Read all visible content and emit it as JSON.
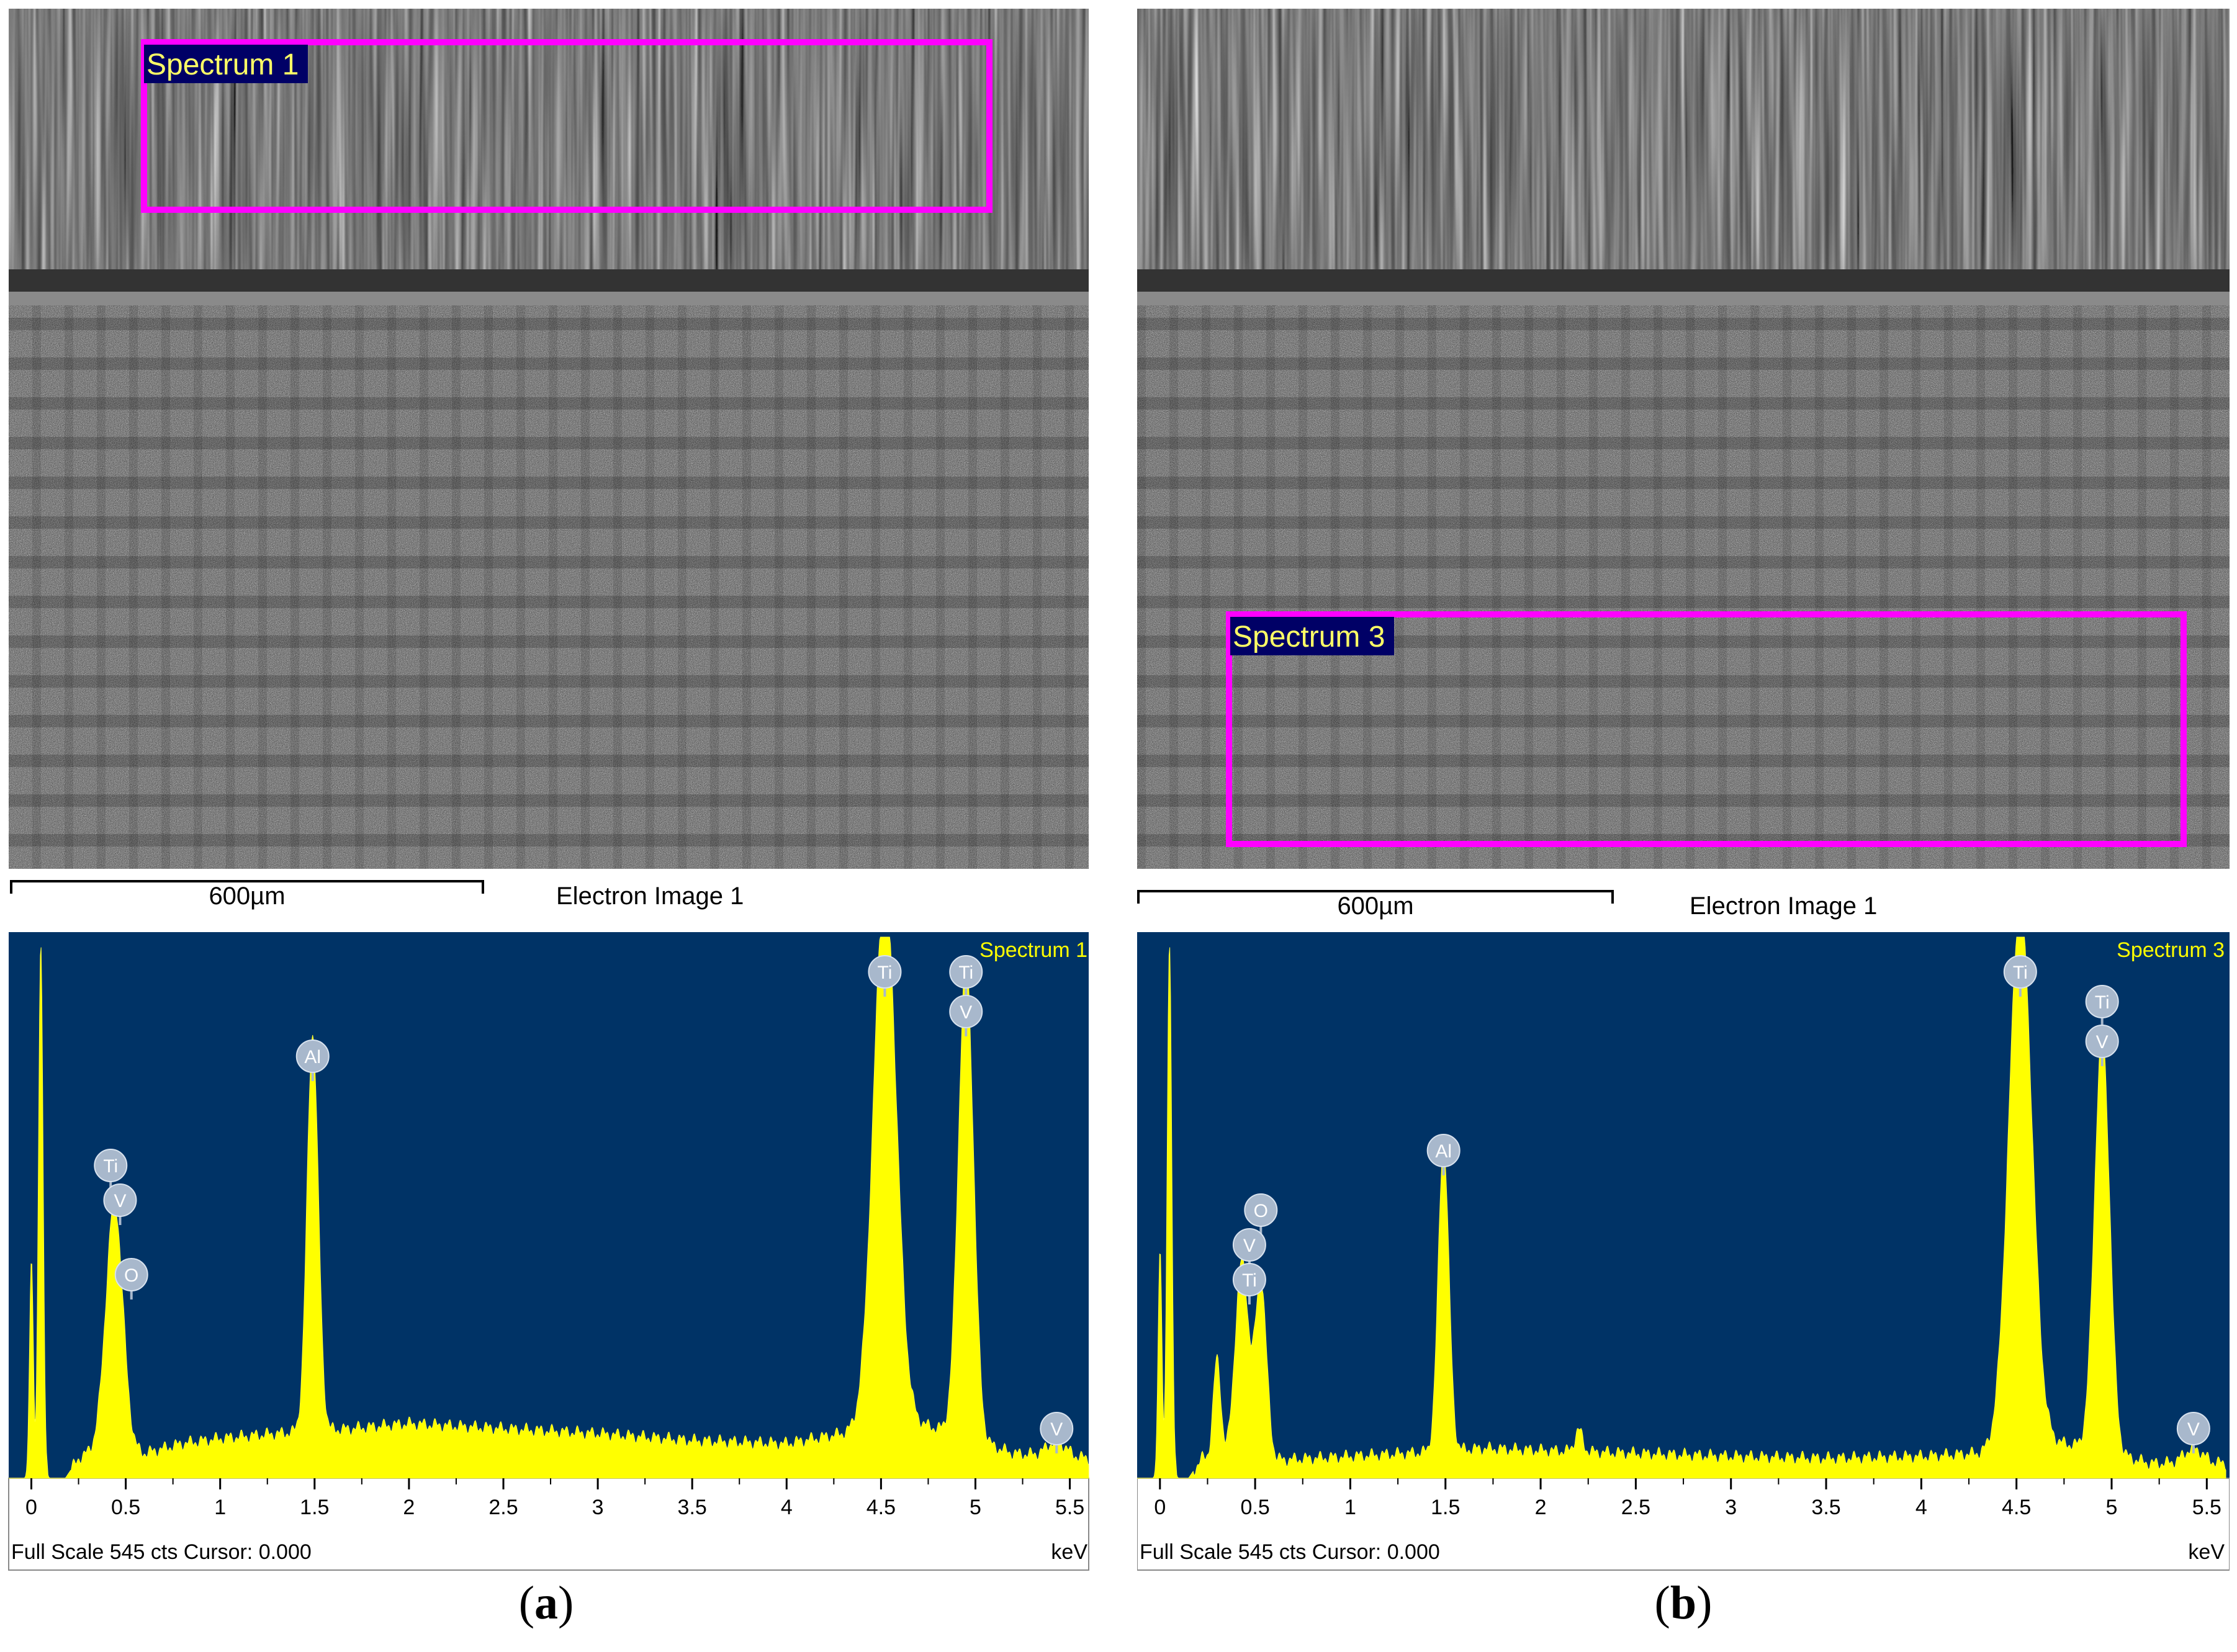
{
  "colors": {
    "spectrum_bg": "#003366",
    "peak_fill": "#ffff00",
    "roi_box": "#ff00ff",
    "label_bg": "#a8b8cc"
  },
  "panels": [
    {
      "caption_letter": "a",
      "electron_image": {
        "roi_label": "Spectrum 1",
        "scale_bar_label": "600µm",
        "image_title": "Electron Image 1"
      },
      "footer": {
        "left": "Full Scale 545 cts Cursor: 0.000",
        "right": "keV"
      }
    },
    {
      "caption_letter": "b",
      "electron_image": {
        "roi_label": "Spectrum 3",
        "scale_bar_label": "600µm",
        "image_title": "Electron Image 1"
      },
      "footer": {
        "left": "Full Scale 545 cts Cursor: 0.000",
        "right": "keV"
      }
    }
  ],
  "chart_data": [
    {
      "type": "area",
      "title": "Spectrum 1",
      "xlabel": "keV",
      "xlim": [
        -0.12,
        5.6
      ],
      "ylim": [
        0,
        545
      ],
      "ticks": [
        "0",
        "0.5",
        "1",
        "1.5",
        "2",
        "2.5",
        "3",
        "3.5",
        "4",
        "4.5",
        "5",
        "5.5"
      ],
      "tick_values": [
        0,
        0.5,
        1,
        1.5,
        2,
        2.5,
        3,
        3.5,
        4,
        4.5,
        5,
        5.5
      ],
      "baseline": [
        [
          -0.05,
          0
        ],
        [
          0.18,
          0
        ],
        [
          0.25,
          20
        ],
        [
          0.35,
          30
        ],
        [
          0.6,
          25
        ],
        [
          0.8,
          35
        ],
        [
          1.0,
          40
        ],
        [
          1.3,
          45
        ],
        [
          1.7,
          50
        ],
        [
          2.0,
          55
        ],
        [
          2.5,
          50
        ],
        [
          3.0,
          45
        ],
        [
          3.5,
          38
        ],
        [
          4.0,
          35
        ],
        [
          4.3,
          45
        ],
        [
          4.6,
          60
        ],
        [
          4.9,
          45
        ],
        [
          5.2,
          25
        ],
        [
          5.6,
          20
        ]
      ],
      "peaks": [
        {
          "x": 0.05,
          "y": 545,
          "w": 0.012
        },
        {
          "x": 0.0,
          "y": 220,
          "w": 0.01
        },
        {
          "x": 0.44,
          "y": 250,
          "w": 0.045
        },
        {
          "x": 1.49,
          "y": 400,
          "w": 0.03
        },
        {
          "x": 4.52,
          "y": 545,
          "w": 0.06
        },
        {
          "x": 4.95,
          "y": 480,
          "w": 0.04
        },
        {
          "x": 5.43,
          "y": 15,
          "w": 0.05
        }
      ],
      "labels": [
        {
          "el": "Ti",
          "x": 0.42,
          "y": 315
        },
        {
          "el": "V",
          "x": 0.47,
          "y": 280
        },
        {
          "el": "O",
          "x": 0.53,
          "y": 205
        },
        {
          "el": "Al",
          "x": 1.49,
          "y": 425
        },
        {
          "el": "Ti",
          "x": 4.52,
          "y": 510
        },
        {
          "el": "Ti",
          "x": 4.95,
          "y": 510
        },
        {
          "el": "V",
          "x": 4.95,
          "y": 470
        },
        {
          "el": "V",
          "x": 5.43,
          "y": 50
        }
      ]
    },
    {
      "type": "area",
      "title": "Spectrum 3",
      "xlabel": "keV",
      "xlim": [
        -0.12,
        5.6
      ],
      "ylim": [
        0,
        545
      ],
      "ticks": [
        "0",
        "0.5",
        "1",
        "1.5",
        "2",
        "2.5",
        "3",
        "3.5",
        "4",
        "4.5",
        "5",
        "5.5"
      ],
      "tick_values": [
        0,
        0.5,
        1,
        1.5,
        2,
        2.5,
        3,
        3.5,
        4,
        4.5,
        5,
        5.5
      ],
      "baseline": [
        [
          -0.05,
          0
        ],
        [
          0.15,
          0
        ],
        [
          0.22,
          20
        ],
        [
          0.6,
          18
        ],
        [
          0.8,
          20
        ],
        [
          1.0,
          22
        ],
        [
          1.3,
          25
        ],
        [
          1.7,
          30
        ],
        [
          2.0,
          28
        ],
        [
          2.5,
          25
        ],
        [
          3.0,
          22
        ],
        [
          3.5,
          20
        ],
        [
          4.0,
          22
        ],
        [
          4.3,
          25
        ],
        [
          4.6,
          40
        ],
        [
          4.9,
          30
        ],
        [
          5.2,
          15
        ],
        [
          5.6,
          15
        ]
      ],
      "peaks": [
        {
          "x": 0.05,
          "y": 545,
          "w": 0.012
        },
        {
          "x": 0.0,
          "y": 230,
          "w": 0.01
        },
        {
          "x": 0.3,
          "y": 100,
          "w": 0.02
        },
        {
          "x": 0.43,
          "y": 200,
          "w": 0.035
        },
        {
          "x": 0.53,
          "y": 180,
          "w": 0.03
        },
        {
          "x": 1.49,
          "y": 310,
          "w": 0.028
        },
        {
          "x": 2.2,
          "y": 22,
          "w": 0.02
        },
        {
          "x": 4.52,
          "y": 545,
          "w": 0.06
        },
        {
          "x": 4.95,
          "y": 420,
          "w": 0.04
        },
        {
          "x": 5.43,
          "y": 15,
          "w": 0.05
        }
      ],
      "labels": [
        {
          "el": "O",
          "x": 0.53,
          "y": 270
        },
        {
          "el": "V",
          "x": 0.47,
          "y": 235
        },
        {
          "el": "Ti",
          "x": 0.47,
          "y": 200
        },
        {
          "el": "Al",
          "x": 1.49,
          "y": 330
        },
        {
          "el": "Ti",
          "x": 4.52,
          "y": 510
        },
        {
          "el": "Ti",
          "x": 4.95,
          "y": 480
        },
        {
          "el": "V",
          "x": 4.95,
          "y": 440
        },
        {
          "el": "V",
          "x": 5.43,
          "y": 50
        }
      ]
    }
  ]
}
